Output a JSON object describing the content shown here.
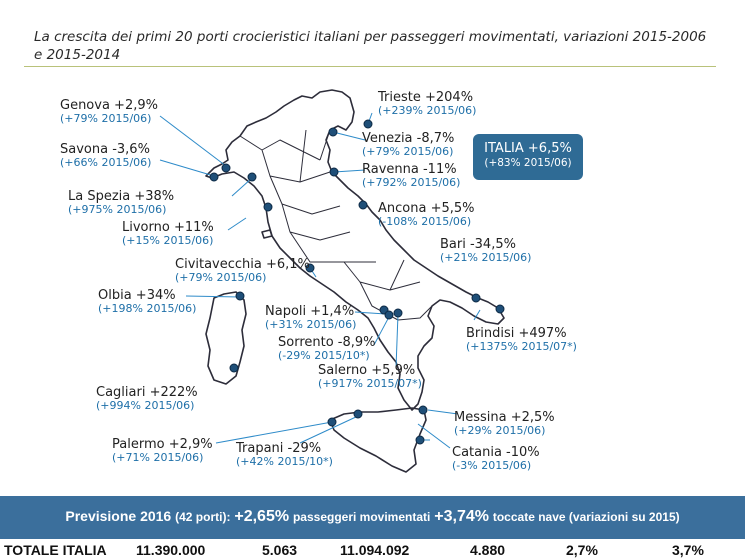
{
  "title": "La crescita dei primi 20 porti crocieristici italiani per passeggeri movimentati, variazioni 2015-2006 e 2015-2014",
  "ports": [
    {
      "id": "trieste",
      "name": "Trieste +204%",
      "stat": "(+239% 2015/06)"
    },
    {
      "id": "genova",
      "name": "Genova +2,9%",
      "stat": "(+79% 2015/06)"
    },
    {
      "id": "venezia",
      "name": "Venezia -8,7%",
      "stat": "(+79% 2015/06)"
    },
    {
      "id": "savona",
      "name": "Savona -3,6%",
      "stat": "(+66% 2015/06)"
    },
    {
      "id": "ravenna",
      "name": "Ravenna -11%",
      "stat": "(+792% 2015/06)"
    },
    {
      "id": "laspezia",
      "name": "La Spezia +38%",
      "stat": "(+975% 2015/06)"
    },
    {
      "id": "ancona",
      "name": "Ancona +5,5%",
      "stat": "(-108% 2015/06)"
    },
    {
      "id": "livorno",
      "name": "Livorno +11%",
      "stat": "(+15% 2015/06)"
    },
    {
      "id": "bari",
      "name": "Bari -34,5%",
      "stat": "(+21% 2015/06)"
    },
    {
      "id": "civitavecchia",
      "name": "Civitavecchia +6,1%",
      "stat": "(+79% 2015/06)"
    },
    {
      "id": "olbia",
      "name": "Olbia +34%",
      "stat": "(+198% 2015/06)"
    },
    {
      "id": "napoli",
      "name": "Napoli +1,4%",
      "stat": "(+31% 2015/06)"
    },
    {
      "id": "brindisi",
      "name": "Brindisi +497%",
      "stat": "(+1375% 2015/07*)"
    },
    {
      "id": "sorrento",
      "name": "Sorrento -8,9%",
      "stat": "(-29% 2015/10*)"
    },
    {
      "id": "salerno",
      "name": "Salerno +5,9%",
      "stat": "(+917% 2015/07*)"
    },
    {
      "id": "cagliari",
      "name": "Cagliari +222%",
      "stat": "(+994% 2015/06)"
    },
    {
      "id": "messina",
      "name": "Messina +2,5%",
      "stat": "(+29% 2015/06)"
    },
    {
      "id": "palermo",
      "name": "Palermo +2,9%",
      "stat": "(+71% 2015/06)"
    },
    {
      "id": "trapani",
      "name": "Trapani -29%",
      "stat": "(+42% 2015/10*)"
    },
    {
      "id": "catania",
      "name": "Catania -10%",
      "stat": "(-3% 2015/06)"
    }
  ],
  "italia": {
    "line1": "ITALIA +6,5%",
    "line2": "(+83% 2015/06)"
  },
  "forecast": {
    "label": "Previsione 2016",
    "ports_note": "(42 porti):",
    "pax_value": "+2,65%",
    "pax_label": "passeggeri movimentati",
    "ships_value": "+3,74%",
    "ships_label": "toccate nave (variazioni su 2015)"
  },
  "totals": {
    "label": "TOTALE ITALIA",
    "values": [
      "11.390.000",
      "5.063",
      "11.094.092",
      "4.880",
      "2,7%",
      "3,7%"
    ]
  },
  "colors": {
    "map_line": "#2d2d3a",
    "dot": "#1f4f78",
    "leader": "#2e8bc9",
    "stat_text": "#1e6fa8",
    "banner": "#3b6f9c",
    "italia_box": "#2f6b95"
  }
}
